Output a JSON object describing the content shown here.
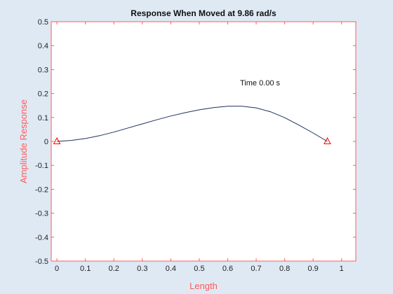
{
  "chart_data": {
    "type": "line",
    "title": "Response When Moved at 9.86 rad/s",
    "xlabel": "Length",
    "ylabel": "Amplitude Response",
    "annotation": "Time 0.00 s",
    "xlim": [
      -0.02,
      1.05
    ],
    "ylim": [
      -0.5,
      0.5
    ],
    "xticks": [
      0,
      0.1,
      0.2,
      0.3,
      0.4,
      0.5,
      0.6,
      0.7,
      0.8,
      0.9,
      1
    ],
    "xtick_labels": [
      "0",
      "0.1",
      "0.2",
      "0.3",
      "0.4",
      "0.5",
      "0.6",
      "0.7",
      "0.8",
      "0.9",
      "1"
    ],
    "yticks": [
      -0.5,
      -0.4,
      -0.3,
      -0.2,
      -0.1,
      0,
      0.1,
      0.2,
      0.3,
      0.4,
      0.5
    ],
    "ytick_labels": [
      "-0.5",
      "-0.4",
      "-0.3",
      "-0.2",
      "-0.1",
      "0",
      "0.1",
      "0.2",
      "0.3",
      "0.4",
      "0.5"
    ],
    "grid": false,
    "series": [
      {
        "color": "#1f2f5f",
        "x": [
          0,
          0.05,
          0.1,
          0.15,
          0.2,
          0.25,
          0.3,
          0.35,
          0.4,
          0.45,
          0.5,
          0.55,
          0.6,
          0.65,
          0.7,
          0.75,
          0.8,
          0.85,
          0.9,
          0.95
        ],
        "y": [
          0,
          0.004,
          0.012,
          0.024,
          0.039,
          0.056,
          0.073,
          0.09,
          0.106,
          0.12,
          0.132,
          0.141,
          0.147,
          0.147,
          0.14,
          0.124,
          0.099,
          0.068,
          0.035,
          0
        ]
      }
    ],
    "markers": [
      {
        "shape": "triangle",
        "color": "#ff0000",
        "x": 0,
        "y": 0
      },
      {
        "shape": "triangle",
        "color": "#ff0000",
        "x": 0.95,
        "y": 0
      }
    ],
    "axis_color": "#ff5a5a",
    "label_color": "#ff5a5a",
    "tick_label_color": "#222222",
    "title_color": "#111111"
  }
}
